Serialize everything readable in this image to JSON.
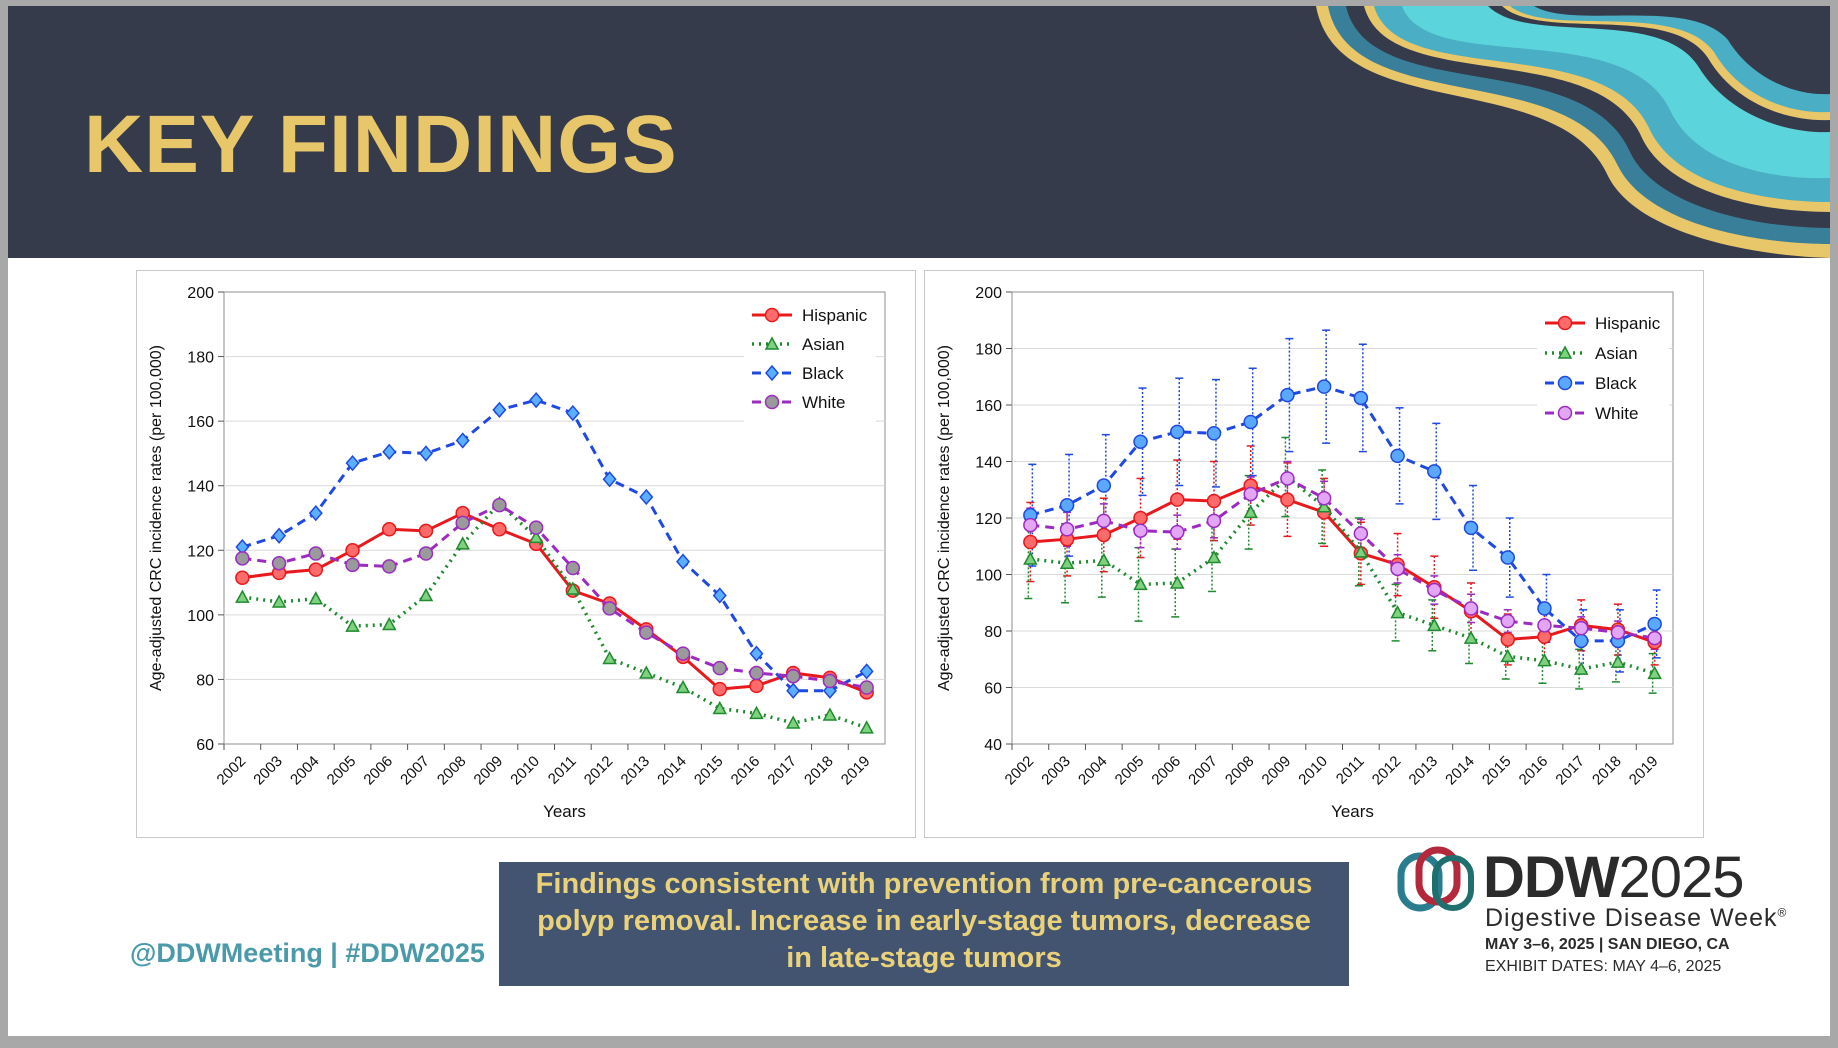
{
  "slide": {
    "title": "KEY FINDINGS",
    "footer_tag": "@DDWMeeting | #DDW2025",
    "findings_lines": [
      "Findings consistent with prevention from pre-cancerous",
      "polyp removal.  Increase in early-stage tumors, decrease",
      "in late-stage tumors"
    ],
    "logo": {
      "mark_text": "DDW",
      "year_text": "2025",
      "subtitle": "Digestive Disease Week",
      "registered": "®",
      "dates": "MAY 3–6, 2025 | SAN DIEGO, CA",
      "exhibit": "EXHIBIT DATES: MAY 4–6, 2025"
    }
  },
  "colors": {
    "header_bg": "#353b4a",
    "title": "#e8c66a",
    "Hispanic": "#e8191c",
    "Asian": "#1f8a2e",
    "Black": "#1f49e0",
    "White": "#9c2bc2"
  },
  "chart_data": [
    {
      "type": "line",
      "xlabel": "Years",
      "ylabel": "Age-adjusted CRC incidence rates (per 100,000)",
      "ylim": [
        60,
        200
      ],
      "yticks": [
        60,
        80,
        100,
        120,
        140,
        160,
        180,
        200
      ],
      "legend_position": "top-right",
      "grid": true,
      "x": [
        "2002",
        "2003",
        "2004",
        "2005",
        "2006",
        "2007",
        "2008",
        "2009",
        "2010",
        "2011",
        "2012",
        "2013",
        "2014",
        "2015",
        "2016",
        "2017",
        "2018",
        "2019"
      ],
      "series": [
        {
          "name": "Hispanic",
          "style": "solid",
          "marker": "circle",
          "values": [
            111.5,
            113,
            114,
            120,
            126.5,
            126,
            131.5,
            126.5,
            122,
            107.5,
            103.5,
            95.5,
            87,
            77,
            78,
            82,
            80.5,
            76
          ]
        },
        {
          "name": "Asian",
          "style": "dotted",
          "marker": "triangle",
          "values": [
            105.5,
            104,
            105,
            96.5,
            97,
            106,
            122,
            134.5,
            124,
            108,
            86.5,
            82,
            77.5,
            71,
            69.5,
            66.5,
            69,
            65
          ]
        },
        {
          "name": "Black",
          "style": "dashed",
          "marker": "diamond",
          "values": [
            121,
            124.5,
            131.5,
            147,
            150.5,
            150,
            154,
            163.5,
            166.5,
            162.5,
            142,
            136.5,
            116.5,
            106,
            88,
            76.5,
            76.5,
            82.5
          ]
        },
        {
          "name": "White",
          "style": "dashed",
          "marker": "circle",
          "values": [
            117.5,
            116,
            119,
            115.5,
            115,
            119,
            128.5,
            134,
            127,
            114.5,
            102,
            94.5,
            88,
            83.5,
            82,
            81,
            79.5,
            77.5
          ]
        }
      ]
    },
    {
      "type": "line",
      "xlabel": "Years",
      "ylabel": "Age-adjusted CRC incidence rates (per 100,000)",
      "ylim": [
        40,
        200
      ],
      "yticks": [
        40,
        60,
        80,
        100,
        120,
        140,
        160,
        180,
        200
      ],
      "legend_position": "top-right",
      "grid": true,
      "error_bars": true,
      "x": [
        "2002",
        "2003",
        "2004",
        "2005",
        "2006",
        "2007",
        "2008",
        "2009",
        "2010",
        "2011",
        "2012",
        "2013",
        "2014",
        "2015",
        "2016",
        "2017",
        "2018",
        "2019"
      ],
      "series": [
        {
          "name": "Hispanic",
          "style": "solid",
          "marker": "circle",
          "values": [
            111.5,
            112.5,
            114,
            120,
            126.5,
            126,
            131.5,
            126.5,
            122,
            107.5,
            103.5,
            95.5,
            87,
            77,
            78,
            82,
            80.5,
            76
          ],
          "errors": [
            14,
            13,
            13,
            14,
            14,
            14,
            14,
            13,
            12,
            11,
            11,
            11,
            10,
            9,
            9,
            9,
            9,
            8
          ]
        },
        {
          "name": "Asian",
          "style": "dotted",
          "marker": "triangle",
          "values": [
            105.5,
            104,
            105,
            96.5,
            97,
            106,
            122,
            134.5,
            124,
            108,
            86.5,
            82,
            77.5,
            71,
            69.5,
            66.5,
            69,
            65
          ],
          "errors": [
            14,
            14,
            13,
            13,
            12,
            12,
            13,
            14,
            13,
            12,
            10,
            9,
            9,
            8,
            8,
            7,
            7,
            7
          ]
        },
        {
          "name": "Black",
          "style": "dashed",
          "marker": "circle",
          "values": [
            121,
            124.5,
            131.5,
            147,
            150.5,
            150,
            154,
            163.5,
            166.5,
            162.5,
            142,
            136.5,
            116.5,
            106,
            88,
            76.5,
            76.5,
            82.5
          ],
          "errors": [
            18,
            18,
            18,
            19,
            19,
            19,
            19,
            20,
            20,
            19,
            17,
            17,
            15,
            14,
            12,
            11,
            11,
            12
          ]
        },
        {
          "name": "White",
          "style": "dashed",
          "marker": "circle",
          "values": [
            117.5,
            116,
            119,
            115.5,
            115,
            119,
            128.5,
            134,
            127,
            114.5,
            102,
            94.5,
            88,
            83.5,
            82,
            81,
            79.5,
            77.5
          ],
          "errors": [
            6,
            6,
            6,
            6,
            6,
            6,
            6,
            6,
            6,
            5,
            5,
            5,
            5,
            4,
            4,
            4,
            4,
            4
          ]
        }
      ]
    }
  ]
}
